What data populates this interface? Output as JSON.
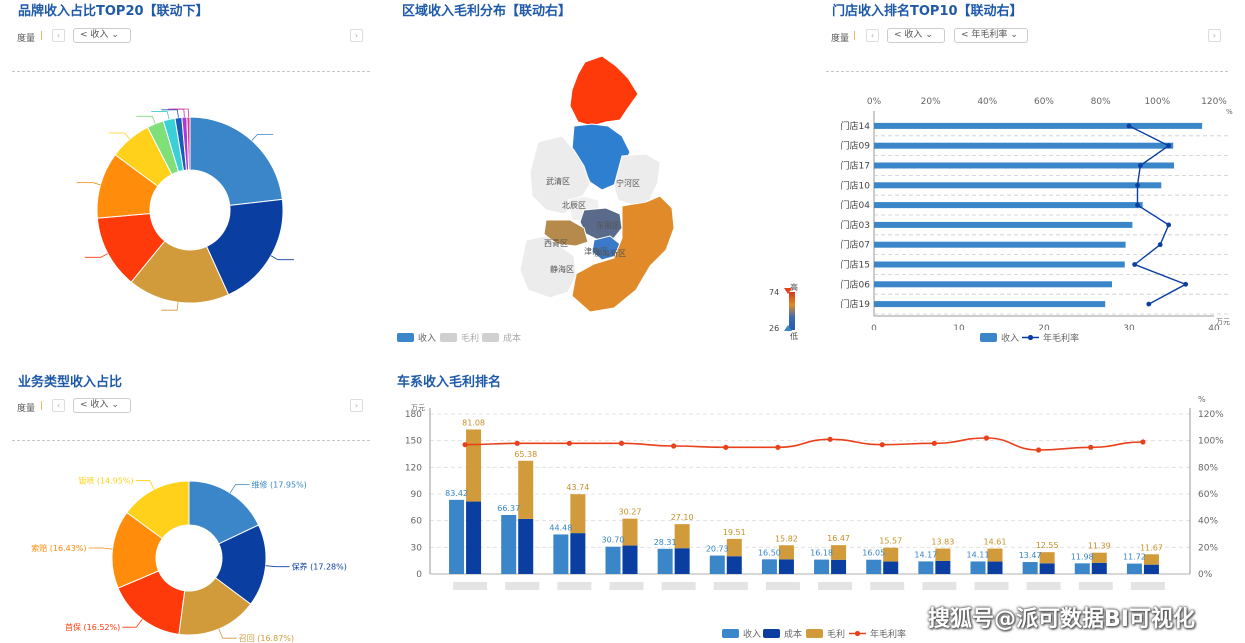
{
  "brand_panel": {
    "title": "品牌收入占比TOP20【联动下】",
    "measure_label": "度量",
    "dropdown": "收入",
    "dropdown_icon": "share-icon",
    "colors": [
      "#3a86c8",
      "#0a3ea0",
      "#d19a3a",
      "#ff3a0a",
      "#ff8c0a",
      "#ffd11a",
      "#7fe07a",
      "#3ad0d8",
      "#1a5ab8",
      "#aa3ad8",
      "#d83a8a"
    ],
    "slices": [
      21.5,
      18.6,
      16.4,
      11.8,
      10.7,
      6.8,
      2.7,
      1.9,
      1.1,
      0.8,
      0.5
    ]
  },
  "region_panel": {
    "title": "区域收入毛利分布【联动右】",
    "districts": [
      "武清区",
      "宁河区",
      "北辰区",
      "东丽区",
      "西青区",
      "津南区",
      "滨海新区",
      "静海区"
    ],
    "visual_max": "74",
    "visual_min": "26",
    "visual_high_label": "高",
    "visual_low_label": "低",
    "legend": [
      "收入",
      "毛利",
      "成本"
    ],
    "legend_colors": [
      "#3a86c8",
      "#d0d0d0",
      "#d0d0d0"
    ]
  },
  "store_panel": {
    "title": "门店收入排名TOP10【联动右】",
    "measure_label": "度量",
    "dropdown1": "收入",
    "dropdown2": "年毛利率",
    "chart_data": {
      "type": "bar",
      "orientation": "horizontal",
      "categories": [
        "门店14",
        "门店09",
        "门店17",
        "门店10",
        "门店04",
        "门店03",
        "门店07",
        "门店15",
        "门店06",
        "门店19"
      ],
      "series": [
        {
          "name": "收入",
          "values": [
            38.6,
            35.2,
            35.3,
            33.8,
            31.6,
            30.4,
            29.6,
            29.5,
            28.0,
            27.2
          ]
        },
        {
          "name": "年毛利率",
          "values": [
            90,
            104,
            94,
            93,
            93,
            104,
            101,
            92,
            110,
            97
          ]
        }
      ],
      "x_ticks": [
        "0",
        "10",
        "20",
        "30",
        "40"
      ],
      "x_range": [
        0,
        40
      ],
      "top_ticks": [
        "0%",
        "20%",
        "40%",
        "60%",
        "80%",
        "100%",
        "120%"
      ],
      "top_range": [
        0,
        120
      ],
      "unit": "万元",
      "top_unit": "%"
    },
    "legend": [
      "收入",
      "年毛利率"
    ]
  },
  "biz_panel": {
    "title": "业务类型收入占比",
    "measure_label": "度量",
    "dropdown": "收入",
    "chart_data": {
      "type": "pie",
      "labels": [
        "维修",
        "保养",
        "召回",
        "首保",
        "索赔",
        "钣喷"
      ],
      "values": [
        17.95,
        17.28,
        16.87,
        16.52,
        16.43,
        14.95
      ],
      "label_texts": [
        "维修 (17.95%)",
        "保养 (17.28%)",
        "召回 (16.87%)",
        "首保 (16.52%)",
        "索赔 (16.43%)",
        "钣喷 (14.95%)"
      ],
      "colors": [
        "#3a86c8",
        "#0a3ea0",
        "#d19a3a",
        "#ff3a0a",
        "#ff8c0a",
        "#ffd11a"
      ]
    }
  },
  "series_panel": {
    "title": "车系收入毛利排名",
    "chart_data": {
      "type": "bar",
      "categories": [
        "",
        "",
        "",
        "",
        "",
        "",
        "",
        "",
        "",
        "",
        "",
        "",
        "",
        ""
      ],
      "series": [
        {
          "name": "收入",
          "values": [
            83.42,
            66.37,
            44.48,
            30.7,
            28.31,
            20.73,
            16.5,
            16.18,
            16.05,
            14.17,
            14.11,
            13.47,
            11.98,
            11.72
          ]
        },
        {
          "name": "成本",
          "values": [
            81.5,
            62.0,
            46.0,
            32.0,
            29.0,
            20.0,
            16.5,
            16.0,
            14.0,
            14.8,
            14.0,
            12.0,
            12.6,
            10.5
          ]
        },
        {
          "name": "毛利",
          "values": [
            81.08,
            65.38,
            43.74,
            30.27,
            27.1,
            19.51,
            15.82,
            16.47,
            15.57,
            13.83,
            14.61,
            12.55,
            11.39,
            11.67
          ]
        },
        {
          "name": "年毛利率",
          "values": [
            97,
            98,
            98,
            98,
            96,
            95,
            95,
            101,
            97,
            98,
            102,
            93,
            95,
            99
          ]
        }
      ],
      "bar_labels": [
        "83.42",
        "66.37",
        "44.48",
        "30.70",
        "28.31",
        "20.73",
        "16.50",
        "16.18",
        "16.05",
        "14.17",
        "14.11",
        "13.47",
        "11.98",
        "11.72"
      ],
      "top_labels": [
        "81.08",
        "65.38",
        "43.74",
        "30.27",
        "27.10",
        "19.51",
        "15.82",
        "16.47",
        "15.57",
        "13.83",
        "14.61",
        "12.55",
        "11.39",
        "11.67"
      ],
      "y_left_ticks": [
        "0",
        "30",
        "60",
        "90",
        "120",
        "150",
        "180"
      ],
      "y_left_range": [
        0,
        180
      ],
      "y_right_ticks": [
        "0%",
        "20%",
        "40%",
        "60%",
        "80%",
        "100%",
        "120%"
      ],
      "y_right_range": [
        0,
        120
      ],
      "left_unit": "万元",
      "right_unit": "%"
    },
    "legend": [
      "收入",
      "成本",
      "毛利",
      "年毛利率"
    ],
    "colors": {
      "revenue": "#3a86c8",
      "cost": "#0a3ea0",
      "profit": "#d19a3a",
      "rate": "#e8401a"
    }
  },
  "watermark": "搜狐号@派可数据BI可视化"
}
